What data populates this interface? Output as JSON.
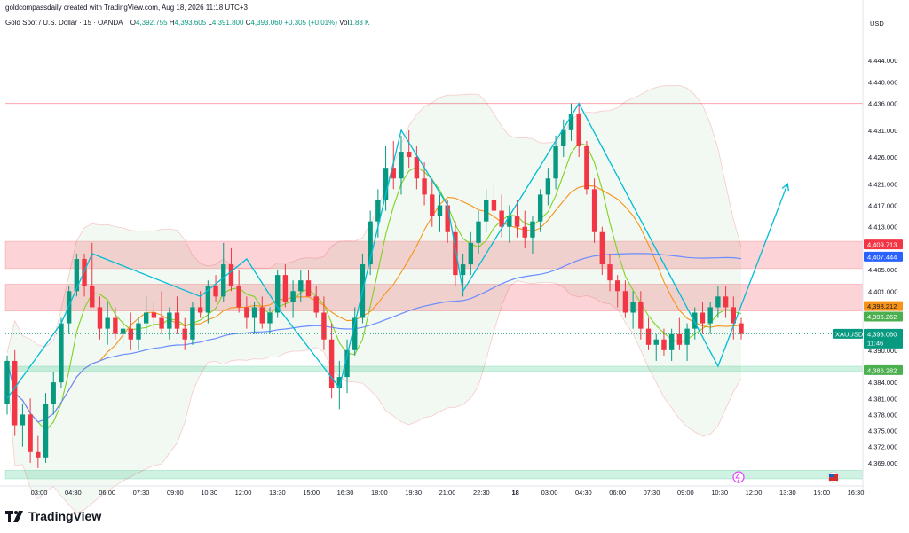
{
  "credit": "goldcompassdaily created with TradingView.com, Aug 18, 2026 11:18 UTC+3",
  "header": {
    "symbol": "Gold Spot / U.S. Dollar · 15 · OANDA",
    "o_label": "O",
    "o_value": "4,392.755",
    "h_label": "H",
    "h_value": "4,393.605",
    "l_label": "L",
    "l_value": "4,391.800",
    "c_label": "C",
    "c_value": "4,393.060",
    "change": "+0.305 (+0.01%)",
    "vol_label": "Vol",
    "vol_value": "1.83 K"
  },
  "brand": "TradingView",
  "chart_data": {
    "type": "candlestick",
    "currency": "USD",
    "y_range": [
      4366,
      4448
    ],
    "y_ticks": [
      "4,444.000",
      "4,440.000",
      "4,436.000",
      "4,431.000",
      "4,426.000",
      "4,421.000",
      "4,417.000",
      "4,413.000",
      "4,405.000",
      "4,401.000",
      "4,390.000",
      "4,384.000",
      "4,381.000",
      "4,378.000",
      "4,375.000",
      "4,372.000",
      "4,369.000"
    ],
    "x_ticks": [
      "03:00",
      "04:30",
      "06:00",
      "07:30",
      "09:00",
      "10:30",
      "12:00",
      "13:30",
      "15:00",
      "16:30",
      "18:00",
      "19:30",
      "21:00",
      "22:30",
      "18",
      "03:00",
      "04:30",
      "06:00",
      "07:30",
      "09:00",
      "10:30",
      "12:00",
      "13:30",
      "15:00",
      "16:30"
    ],
    "price_tags": [
      {
        "label": "4,409.713",
        "value": 4409.713,
        "color": "#f23645",
        "text_color": "#ffffff"
      },
      {
        "label": "4,407.444",
        "value": 4407.444,
        "color": "#2962ff",
        "text_color": "#ffffff"
      },
      {
        "label": "4,398.212",
        "value": 4398.212,
        "color": "#f7931a",
        "text_color": "#131722"
      },
      {
        "label": "4,396.262",
        "value": 4396.262,
        "color": "#4caf50",
        "text_color": "#ffffff"
      },
      {
        "label": "4,386.282",
        "value": 4386.282,
        "color": "#4caf50",
        "text_color": "#ffffff"
      }
    ],
    "last_price": {
      "symbol": "XAUUSD",
      "value": 4393.06,
      "label": "4,393.060",
      "countdown": "11:46",
      "color": "#089981"
    },
    "zones": [
      {
        "from": 4405.2,
        "to": 4410.3,
        "color": "#f23645"
      },
      {
        "from": 4397.3,
        "to": 4402.3,
        "color": "#f23645"
      },
      {
        "from": 4386.0,
        "to": 4387.0,
        "color": "#26c281"
      },
      {
        "from": 4366.0,
        "to": 4367.6,
        "color": "#26c281"
      }
    ],
    "hline": 4436.0,
    "candles": [
      [
        4380,
        4389,
        4378,
        4388
      ],
      [
        4388,
        4390,
        4374,
        4376
      ],
      [
        4376,
        4380,
        4372,
        4378
      ],
      [
        4378,
        4381,
        4369,
        4371
      ],
      [
        4371,
        4374,
        4368,
        4370
      ],
      [
        4370,
        4382,
        4369,
        4380
      ],
      [
        4380,
        4386,
        4378,
        4384
      ],
      [
        4384,
        4396,
        4383,
        4395
      ],
      [
        4395,
        4402,
        4393,
        4401
      ],
      [
        4401,
        4408,
        4400,
        4407
      ],
      [
        4407,
        4408,
        4400,
        4402
      ],
      [
        4402,
        4410,
        4398,
        4398
      ],
      [
        4398,
        4400,
        4392,
        4394
      ],
      [
        4394,
        4399,
        4391,
        4396
      ],
      [
        4396,
        4398,
        4392,
        4393
      ],
      [
        4393,
        4396,
        4391,
        4394
      ],
      [
        4394,
        4397,
        4390,
        4392
      ],
      [
        4392,
        4396,
        4390,
        4395
      ],
      [
        4395,
        4400,
        4393,
        4397
      ],
      [
        4397,
        4399,
        4394,
        4396
      ],
      [
        4396,
        4401,
        4393,
        4394
      ],
      [
        4394,
        4398,
        4392,
        4397
      ],
      [
        4397,
        4400,
        4393,
        4394
      ],
      [
        4394,
        4396,
        4390,
        4392
      ],
      [
        4392,
        4399,
        4391,
        4398
      ],
      [
        4398,
        4401,
        4396,
        4397
      ],
      [
        4397,
        4403,
        4395,
        4402
      ],
      [
        4402,
        4404,
        4399,
        4400
      ],
      [
        4400,
        4410,
        4399,
        4406
      ],
      [
        4406,
        4409,
        4401,
        4402
      ],
      [
        4402,
        4405,
        4397,
        4398
      ],
      [
        4398,
        4400,
        4394,
        4396
      ],
      [
        4396,
        4399,
        4393,
        4398
      ],
      [
        4398,
        4400,
        4394,
        4395
      ],
      [
        4395,
        4398,
        4393,
        4397
      ],
      [
        4397,
        4405,
        4396,
        4404
      ],
      [
        4404,
        4406,
        4398,
        4399
      ],
      [
        4399,
        4403,
        4396,
        4401
      ],
      [
        4401,
        4405,
        4399,
        4403
      ],
      [
        4403,
        4405,
        4400,
        4400
      ],
      [
        4400,
        4402,
        4396,
        4397
      ],
      [
        4397,
        4400,
        4390,
        4392
      ],
      [
        4392,
        4395,
        4381,
        4383
      ],
      [
        4383,
        4388,
        4379,
        4385
      ],
      [
        4385,
        4392,
        4382,
        4390
      ],
      [
        4390,
        4398,
        4389,
        4396
      ],
      [
        4396,
        4408,
        4395,
        4406
      ],
      [
        4406,
        4416,
        4404,
        4414
      ],
      [
        4414,
        4420,
        4411,
        4418
      ],
      [
        4418,
        4428,
        4416,
        4424
      ],
      [
        4424,
        4429,
        4420,
        4422
      ],
      [
        4422,
        4430,
        4419,
        4427
      ],
      [
        4427,
        4431,
        4424,
        4426
      ],
      [
        4426,
        4428,
        4420,
        4422
      ],
      [
        4422,
        4425,
        4417,
        4419
      ],
      [
        4419,
        4422,
        4413,
        4415
      ],
      [
        4415,
        4419,
        4412,
        4417
      ],
      [
        4417,
        4418,
        4410,
        4412
      ],
      [
        4412,
        4414,
        4402,
        4404
      ],
      [
        4404,
        4408,
        4400,
        4406
      ],
      [
        4406,
        4412,
        4404,
        4410
      ],
      [
        4410,
        4416,
        4408,
        4414
      ],
      [
        4414,
        4420,
        4412,
        4418
      ],
      [
        4418,
        4421,
        4414,
        4416
      ],
      [
        4416,
        4419,
        4411,
        4413
      ],
      [
        4413,
        4417,
        4410,
        4415
      ],
      [
        4415,
        4418,
        4411,
        4413
      ],
      [
        4413,
        4416,
        4409,
        4411
      ],
      [
        4411,
        4415,
        4408,
        4414
      ],
      [
        4414,
        4420,
        4412,
        4419
      ],
      [
        4419,
        4424,
        4417,
        4422
      ],
      [
        4422,
        4430,
        4420,
        4428
      ],
      [
        4428,
        4433,
        4426,
        4431
      ],
      [
        4431,
        4436,
        4429,
        4434
      ],
      [
        4434,
        4436,
        4426,
        4428
      ],
      [
        4428,
        4429,
        4419,
        4420
      ],
      [
        4420,
        4422,
        4410,
        4412
      ],
      [
        4412,
        4413,
        4404,
        4406
      ],
      [
        4406,
        4408,
        4401,
        4403
      ],
      [
        4403,
        4404,
        4398,
        4401
      ],
      [
        4401,
        4403,
        4396,
        4397
      ],
      [
        4397,
        4401,
        4394,
        4399
      ],
      [
        4399,
        4401,
        4392,
        4394
      ],
      [
        4394,
        4396,
        4390,
        4391
      ],
      [
        4391,
        4393,
        4388,
        4392
      ],
      [
        4392,
        4394,
        4389,
        4390
      ],
      [
        4390,
        4394,
        4388,
        4393
      ],
      [
        4393,
        4396,
        4390,
        4391
      ],
      [
        4391,
        4395,
        4388,
        4394
      ],
      [
        4394,
        4398,
        4392,
        4397
      ],
      [
        4397,
        4399,
        4393,
        4395
      ],
      [
        4395,
        4399,
        4393,
        4398
      ],
      [
        4398,
        4402,
        4396,
        4400
      ],
      [
        4400,
        4402,
        4396,
        4398
      ],
      [
        4398,
        4400,
        4392,
        4395
      ],
      [
        4395,
        4396,
        4392,
        4393
      ]
    ],
    "pattern_points": [
      [
        0,
        4381
      ],
      [
        7,
        4395
      ],
      [
        11,
        4408
      ],
      [
        25,
        4400
      ],
      [
        31,
        4407
      ],
      [
        35,
        4398
      ],
      [
        43,
        4383
      ],
      [
        51,
        4431
      ],
      [
        57,
        4417
      ],
      [
        59,
        4401
      ],
      [
        65,
        4415
      ],
      [
        74,
        4436
      ],
      [
        92,
        4387
      ],
      [
        101,
        4421
      ]
    ],
    "annotations": [
      "earnings-icon",
      "us-flag-icon"
    ]
  }
}
